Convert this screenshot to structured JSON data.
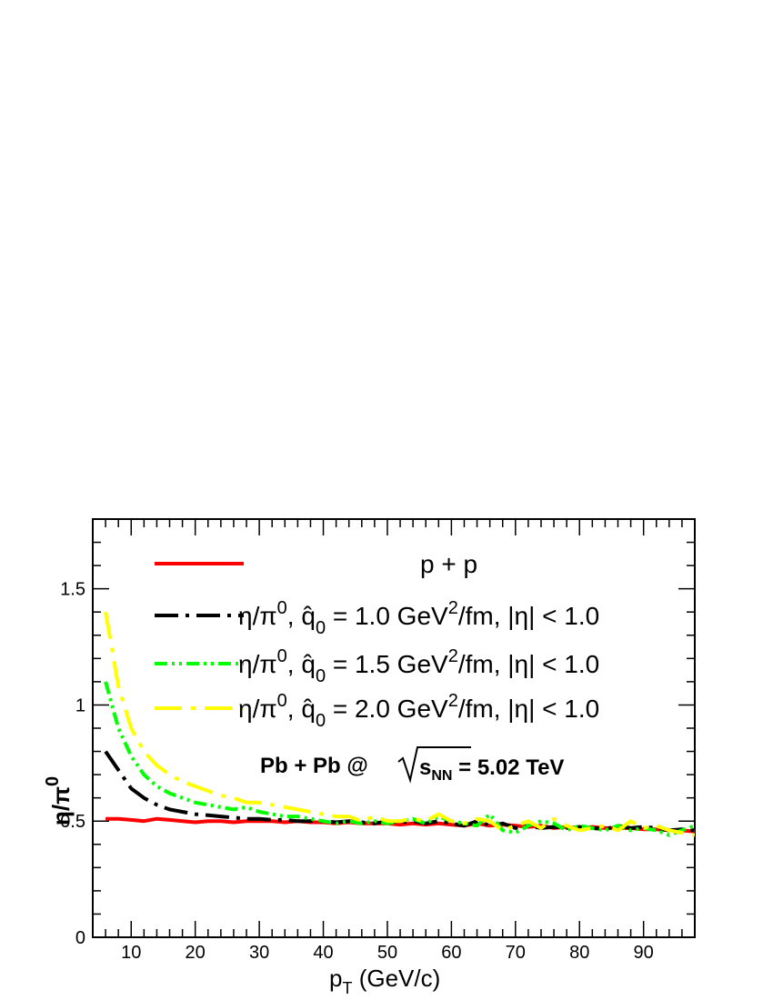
{
  "chart_data": {
    "type": "line",
    "xlabel": {
      "main": "p",
      "sub": "T",
      "rest": " (GeV/c)"
    },
    "ylabel": {
      "main": "η/π",
      "sup": "0"
    },
    "xlim": [
      4,
      98
    ],
    "ylim": [
      0,
      1.8
    ],
    "x_ticks": [
      10,
      20,
      30,
      40,
      50,
      60,
      70,
      80,
      90
    ],
    "y_ticks": [
      0,
      0.5,
      1,
      1.5
    ],
    "y_tick_labels": [
      "0",
      "0.5",
      "1",
      "1.5"
    ],
    "x_minor_step": 2,
    "y_minor_step": 0.1,
    "grid": false,
    "legend_position": "top",
    "series": [
      {
        "key": "pp",
        "color": "#ff0000",
        "dash": "solid",
        "label": "p + p",
        "x": [
          6,
          8,
          10,
          12,
          14,
          16,
          18,
          20,
          22,
          24,
          26,
          28,
          30,
          32,
          34,
          36,
          38,
          40,
          42,
          44,
          46,
          48,
          50,
          52,
          54,
          56,
          58,
          60,
          62,
          64,
          66,
          68,
          70,
          72,
          74,
          76,
          78,
          80,
          82,
          84,
          86,
          88,
          90,
          92,
          94,
          96,
          98
        ],
        "y": [
          0.51,
          0.51,
          0.505,
          0.5,
          0.51,
          0.505,
          0.5,
          0.495,
          0.5,
          0.5,
          0.495,
          0.5,
          0.5,
          0.5,
          0.495,
          0.5,
          0.495,
          0.495,
          0.49,
          0.495,
          0.49,
          0.49,
          0.49,
          0.485,
          0.49,
          0.485,
          0.49,
          0.485,
          0.48,
          0.49,
          0.48,
          0.485,
          0.48,
          0.475,
          0.48,
          0.47,
          0.475,
          0.47,
          0.475,
          0.47,
          0.47,
          0.47,
          0.465,
          0.465,
          0.46,
          0.46,
          0.455
        ]
      },
      {
        "key": "q10",
        "color": "#000000",
        "dash": "dashdot",
        "label_parts": {
          "lead": "η/π",
          "lead_sup": "0",
          "mid": ",  q̂",
          "mid_sub": "0",
          "value": " = 1.0 GeV",
          "unit_sup": "2",
          "tail": "/fm,  |η| < 1.0"
        },
        "x": [
          6,
          8,
          10,
          12,
          14,
          16,
          18,
          20,
          22,
          24,
          26,
          28,
          30,
          32,
          34,
          36,
          38,
          40,
          42,
          44,
          46,
          48,
          50,
          52,
          54,
          56,
          58,
          60,
          62,
          64,
          66,
          68,
          70,
          72,
          74,
          76,
          78,
          80,
          82,
          84,
          86,
          88,
          90,
          92,
          94,
          96,
          98
        ],
        "y": [
          0.8,
          0.72,
          0.64,
          0.6,
          0.57,
          0.55,
          0.54,
          0.53,
          0.525,
          0.52,
          0.515,
          0.51,
          0.51,
          0.505,
          0.505,
          0.5,
          0.5,
          0.5,
          0.495,
          0.5,
          0.495,
          0.49,
          0.5,
          0.495,
          0.5,
          0.49,
          0.5,
          0.49,
          0.48,
          0.5,
          0.48,
          0.49,
          0.47,
          0.48,
          0.47,
          0.475,
          0.47,
          0.475,
          0.47,
          0.465,
          0.48,
          0.47,
          0.475,
          0.47,
          0.46,
          0.465,
          0.46
        ]
      },
      {
        "key": "q15",
        "color": "#00ff00",
        "dash": "dashdotdot",
        "label_parts": {
          "lead": "η/π",
          "lead_sup": "0",
          "mid": ",  q̂",
          "mid_sub": "0",
          "value": " = 1.5 GeV",
          "unit_sup": "2",
          "tail": "/fm,  |η| < 1.0"
        },
        "x": [
          6,
          8,
          10,
          12,
          14,
          16,
          18,
          20,
          22,
          24,
          26,
          28,
          30,
          32,
          34,
          36,
          38,
          40,
          42,
          44,
          46,
          48,
          50,
          52,
          54,
          56,
          58,
          60,
          62,
          64,
          66,
          68,
          70,
          72,
          74,
          76,
          78,
          80,
          82,
          84,
          86,
          88,
          90,
          92,
          94,
          96,
          98
        ],
        "y": [
          1.1,
          0.9,
          0.78,
          0.7,
          0.65,
          0.62,
          0.6,
          0.58,
          0.57,
          0.56,
          0.55,
          0.56,
          0.54,
          0.53,
          0.52,
          0.52,
          0.51,
          0.5,
          0.49,
          0.5,
          0.49,
          0.5,
          0.49,
          0.5,
          0.51,
          0.49,
          0.52,
          0.5,
          0.49,
          0.48,
          0.53,
          0.46,
          0.45,
          0.48,
          0.5,
          0.49,
          0.46,
          0.48,
          0.47,
          0.46,
          0.48,
          0.46,
          0.47,
          0.46,
          0.44,
          0.46,
          0.48
        ]
      },
      {
        "key": "q20",
        "color": "#ffff00",
        "dash": "longdashdot",
        "label_parts": {
          "lead": "η/π",
          "lead_sup": "0",
          "mid": ",  q̂",
          "mid_sub": "0",
          "value": " = 2.0 GeV",
          "unit_sup": "2",
          "tail": "/fm,  |η| < 1.0"
        },
        "x": [
          6,
          8,
          10,
          12,
          14,
          16,
          18,
          20,
          22,
          24,
          26,
          28,
          30,
          32,
          34,
          36,
          38,
          40,
          42,
          44,
          46,
          48,
          50,
          52,
          54,
          56,
          58,
          60,
          62,
          64,
          66,
          68,
          70,
          72,
          74,
          76,
          78,
          80,
          82,
          84,
          86,
          88,
          90,
          92,
          94,
          96,
          98
        ],
        "y": [
          1.4,
          1.08,
          0.9,
          0.8,
          0.74,
          0.7,
          0.67,
          0.65,
          0.63,
          0.61,
          0.6,
          0.58,
          0.58,
          0.57,
          0.56,
          0.55,
          0.54,
          0.53,
          0.52,
          0.52,
          0.5,
          0.52,
          0.5,
          0.5,
          0.51,
          0.5,
          0.53,
          0.5,
          0.49,
          0.51,
          0.5,
          0.46,
          0.48,
          0.5,
          0.47,
          0.51,
          0.48,
          0.46,
          0.47,
          0.48,
          0.46,
          0.5,
          0.47,
          0.48,
          0.46,
          0.45,
          0.44
        ]
      }
    ],
    "annotation": {
      "prefix": "Pb + Pb @",
      "sqrt_arg": "s",
      "sqrt_sub": "NN",
      "suffix": " = 5.02 TeV"
    }
  }
}
